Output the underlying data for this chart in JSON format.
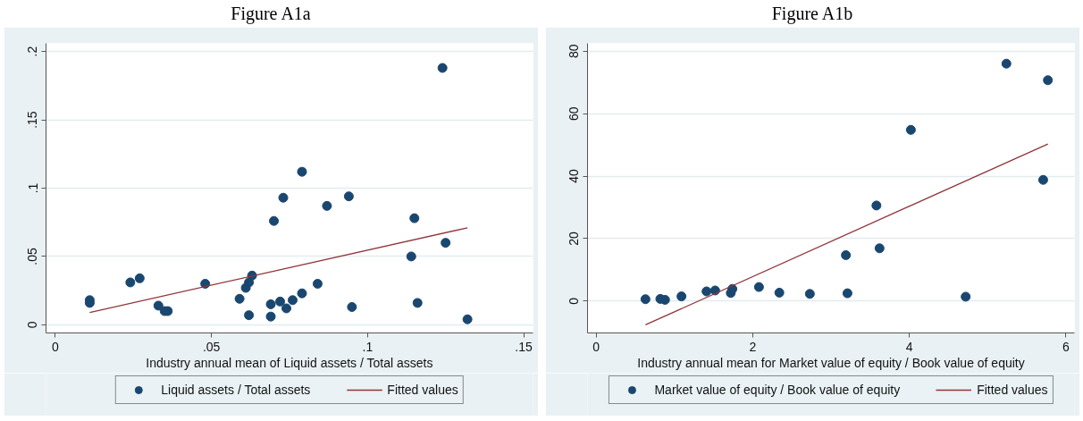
{
  "chart_data": [
    {
      "type": "scatter",
      "title": "Figure A1a",
      "xlabel": "Industry annual mean of Liquid assets / Total assets",
      "series": [
        {
          "name": "Liquid assets / Total assets",
          "color": "#1a476f",
          "marker": "circle",
          "x": [
            0.011,
            0.011,
            0.024,
            0.027,
            0.033,
            0.035,
            0.036,
            0.048,
            0.059,
            0.061,
            0.062,
            0.063,
            0.062,
            0.069,
            0.069,
            0.07,
            0.124,
            0.079,
            0.073,
            0.094,
            0.087,
            0.115,
            0.125,
            0.114,
            0.084,
            0.079,
            0.076,
            0.072,
            0.074,
            0.095,
            0.116,
            0.132
          ],
          "values": [
            0.018,
            0.016,
            0.031,
            0.034,
            0.014,
            0.01,
            0.01,
            0.03,
            0.019,
            0.027,
            0.031,
            0.036,
            0.007,
            0.015,
            0.006,
            0.076,
            0.188,
            0.112,
            0.093,
            0.094,
            0.087,
            0.078,
            0.06,
            0.05,
            0.03,
            0.023,
            0.018,
            0.017,
            0.012,
            0.013,
            0.016,
            0.004
          ]
        },
        {
          "name": "Fitted values",
          "type": "line",
          "color": "#90353b",
          "x": [
            0.011,
            0.132
          ],
          "values": [
            0.009,
            0.071
          ]
        }
      ],
      "xlim": [
        -0.003,
        0.153
      ],
      "ylim": [
        -0.006,
        0.206
      ],
      "xticks": [
        0,
        {
          "value": 0.05,
          "label": ".05"
        },
        {
          "value": 0.1,
          "label": ".1"
        },
        {
          "value": 0.15,
          "label": ".15"
        }
      ],
      "yticks": [
        0,
        {
          "value": 0.05,
          "label": ".05"
        },
        {
          "value": 0.1,
          "label": ".1"
        },
        {
          "value": 0.15,
          "label": ".15"
        },
        {
          "value": 0.2,
          "label": ".2"
        }
      ],
      "grid": "y",
      "legend": "bottom"
    },
    {
      "type": "scatter",
      "title": "Figure A1b",
      "xlabel": "Industry annual mean for Market value of equity / Book value of equity",
      "series": [
        {
          "name": "Market value of equity / Book value of equity",
          "color": "#1a476f",
          "marker": "circle",
          "x": [
            0.63,
            0.82,
            0.88,
            1.09,
            1.41,
            1.52,
            1.74,
            1.72,
            2.08,
            2.34,
            2.73,
            3.21,
            3.19,
            3.62,
            3.58,
            4.02,
            4.72,
            5.24,
            5.77,
            5.71
          ],
          "values": [
            0.6,
            0.7,
            0.4,
            1.5,
            3.1,
            3.4,
            3.9,
            2.6,
            4.5,
            2.7,
            2.3,
            2.5,
            14.7,
            16.9,
            30.6,
            54.8,
            1.4,
            76.0,
            70.7,
            38.8
          ]
        },
        {
          "name": "Fitted values",
          "type": "line",
          "color": "#90353b",
          "x": [
            0.63,
            5.77
          ],
          "values": [
            -7.6,
            50.3
          ]
        }
      ],
      "xlim": [
        -0.11,
        6.11
      ],
      "ylim": [
        -10.2,
        82.5
      ],
      "xticks": [
        0,
        2,
        4,
        6
      ],
      "yticks": [
        0,
        20,
        40,
        60,
        80
      ],
      "grid": "y",
      "legend": "bottom"
    }
  ]
}
